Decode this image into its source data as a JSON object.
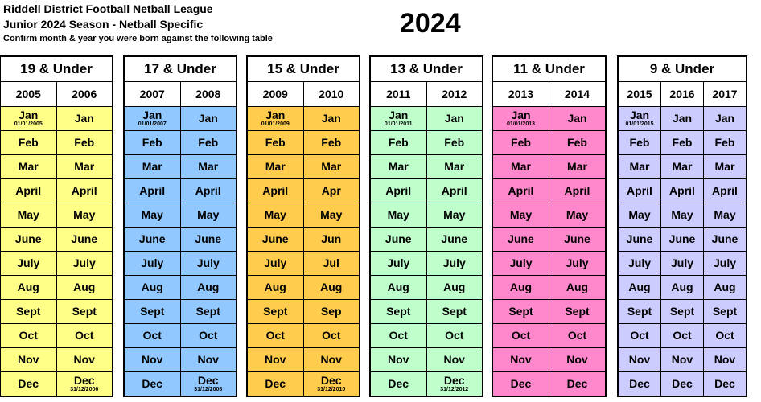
{
  "header": {
    "title": "Riddell District Football Netball League",
    "subtitle": "Junior 2024 Season - Netball Specific",
    "instruction": "Confirm month & year you were born against the following table",
    "year": "2024"
  },
  "groups": [
    {
      "name": "19 & Under",
      "color": "#ffff88",
      "columns": [
        {
          "year": "2005",
          "months": [
            "Jan",
            "Feb",
            "Mar",
            "April",
            "May",
            "June",
            "July",
            "Aug",
            "Sept",
            "Oct",
            "Nov",
            "Dec"
          ],
          "first_date": "01/01/2005"
        },
        {
          "year": "2006",
          "months": [
            "Jan",
            "Feb",
            "Mar",
            "April",
            "May",
            "June",
            "July",
            "Aug",
            "Sept",
            "Oct",
            "Nov",
            "Dec"
          ],
          "last_date": "31/12/2006"
        }
      ]
    },
    {
      "name": "17 & Under",
      "color": "#90c8ff",
      "columns": [
        {
          "year": "2007",
          "months": [
            "Jan",
            "Feb",
            "Mar",
            "April",
            "May",
            "June",
            "July",
            "Aug",
            "Sept",
            "Oct",
            "Nov",
            "Dec"
          ],
          "first_date": "01/01/2007"
        },
        {
          "year": "2008",
          "months": [
            "Jan",
            "Feb",
            "Mar",
            "April",
            "May",
            "June",
            "July",
            "Aug",
            "Sept",
            "Oct",
            "Nov",
            "Dec"
          ],
          "last_date": "31/12/2008"
        }
      ]
    },
    {
      "name": "15 & Under",
      "color": "#ffcc4d",
      "columns": [
        {
          "year": "2009",
          "months": [
            "Jan",
            "Feb",
            "Mar",
            "April",
            "May",
            "June",
            "July",
            "Aug",
            "Sept",
            "Oct",
            "Nov",
            "Dec"
          ],
          "first_date": "01/01/2009"
        },
        {
          "year": "2010",
          "months": [
            "Jan",
            "Feb",
            "Mar",
            "Apr",
            "May",
            "Jun",
            "Jul",
            "Aug",
            "Sep",
            "Oct",
            "Nov",
            "Dec"
          ],
          "last_date": "31/12/2010"
        }
      ]
    },
    {
      "name": "13 & Under",
      "color": "#bfffcc",
      "columns": [
        {
          "year": "2011",
          "months": [
            "Jan",
            "Feb",
            "Mar",
            "April",
            "May",
            "June",
            "July",
            "Aug",
            "Sept",
            "Oct",
            "Nov",
            "Dec"
          ],
          "first_date": "01/01/2011"
        },
        {
          "year": "2012",
          "months": [
            "Jan",
            "Feb",
            "Mar",
            "April",
            "May",
            "June",
            "July",
            "Aug",
            "Sept",
            "Oct",
            "Nov",
            "Dec"
          ],
          "last_date": "31/12/2012"
        }
      ]
    },
    {
      "name": "11 & Under",
      "color": "#ff88cc",
      "columns": [
        {
          "year": "2013",
          "months": [
            "Jan",
            "Feb",
            "Mar",
            "April",
            "May",
            "June",
            "July",
            "Aug",
            "Sept",
            "Oct",
            "Nov",
            "Dec"
          ],
          "first_date": "01/01/2013"
        },
        {
          "year": "2014",
          "months": [
            "Jan",
            "Feb",
            "Mar",
            "April",
            "May",
            "June",
            "July",
            "Aug",
            "Sept",
            "Oct",
            "Nov",
            "Dec"
          ]
        }
      ]
    },
    {
      "name": "9 & Under",
      "color": "#ccccff",
      "columns": [
        {
          "year": "2015",
          "months": [
            "Jan",
            "Feb",
            "Mar",
            "April",
            "May",
            "June",
            "July",
            "Aug",
            "Sept",
            "Oct",
            "Nov",
            "Dec"
          ],
          "first_date": "01/01/2015"
        },
        {
          "year": "2016",
          "months": [
            "Jan",
            "Feb",
            "Mar",
            "April",
            "May",
            "June",
            "July",
            "Aug",
            "Sept",
            "Oct",
            "Nov",
            "Dec"
          ]
        },
        {
          "year": "2017",
          "months": [
            "Jan",
            "Feb",
            "Mar",
            "April",
            "May",
            "June",
            "July",
            "Aug",
            "Sept",
            "Oct",
            "Nov",
            "Dec"
          ]
        }
      ]
    }
  ]
}
